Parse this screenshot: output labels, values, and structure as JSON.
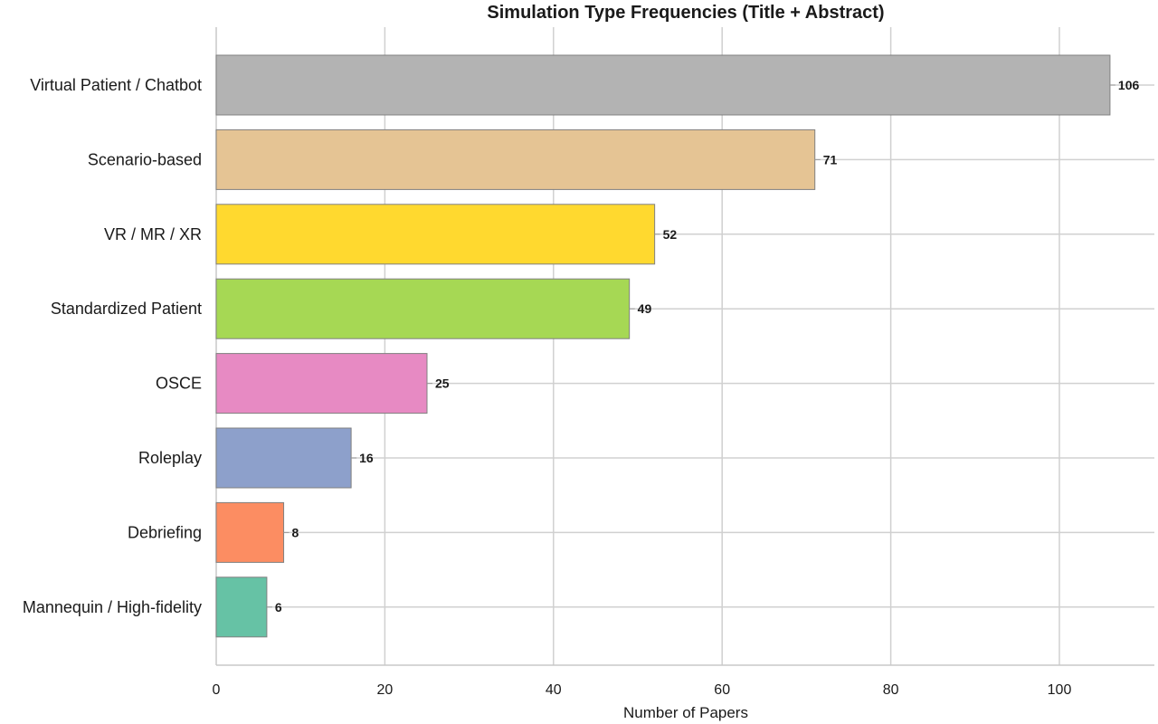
{
  "chart_data": {
    "type": "bar",
    "orientation": "horizontal",
    "title": "Simulation Type Frequencies (Title + Abstract)",
    "xlabel": "Number of Papers",
    "ylabel": "",
    "xlim": [
      0,
      110
    ],
    "xticks": [
      "0",
      "20",
      "40",
      "60",
      "80",
      "100"
    ],
    "grid": true,
    "categories": [
      "Virtual Patient / Chatbot",
      "Scenario-based",
      "VR / MR / XR",
      "Standardized Patient",
      "OSCE",
      "Roleplay",
      "Debriefing",
      "Mannequin / High-fidelity"
    ],
    "values": [
      106,
      71,
      52,
      49,
      25,
      16,
      8,
      6
    ],
    "value_labels": [
      "106",
      "71",
      "52",
      "49",
      "25",
      "16",
      "8",
      "6"
    ],
    "colors": [
      "#b3b3b3",
      "#e5c494",
      "#ffd92f",
      "#a6d854",
      "#e78ac3",
      "#8da0cb",
      "#fc8d62",
      "#66c2a5"
    ]
  }
}
